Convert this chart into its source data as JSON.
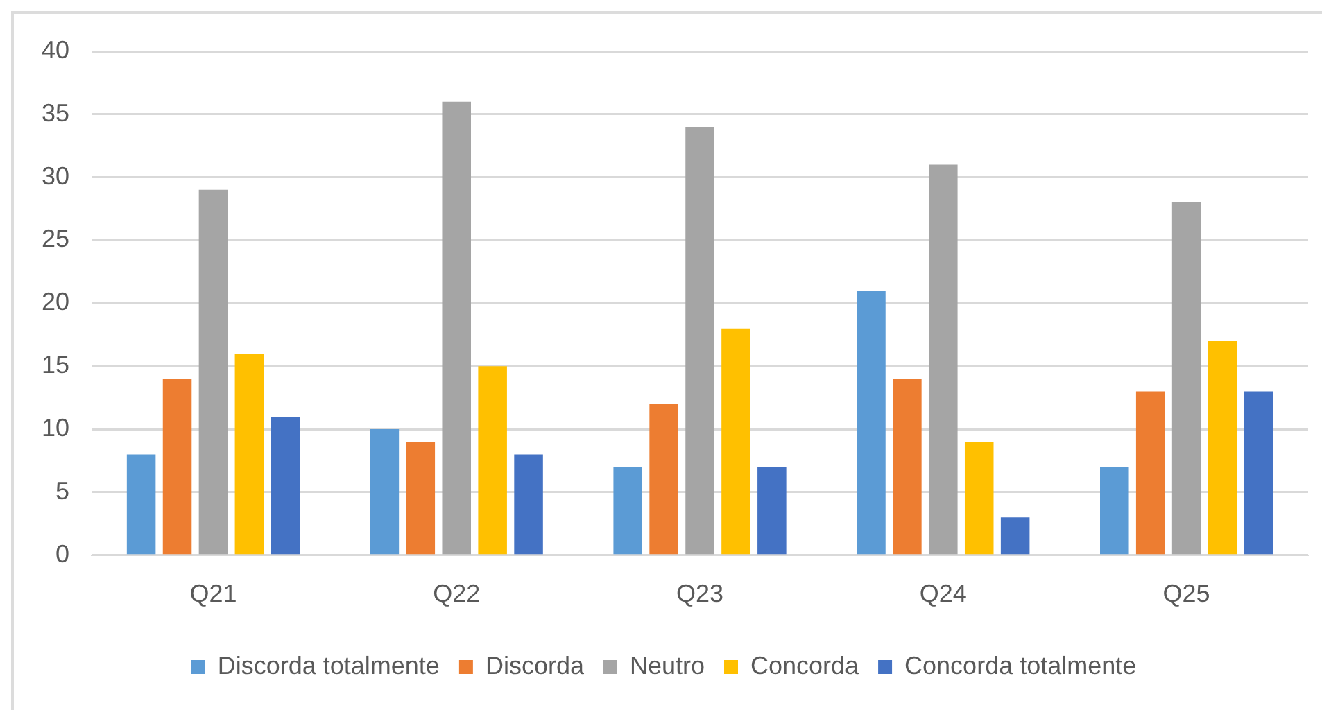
{
  "chart_data": {
    "type": "bar",
    "categories": [
      "Q21",
      "Q22",
      "Q23",
      "Q24",
      "Q25"
    ],
    "series": [
      {
        "name": "Discorda totalmente",
        "color": "#5b9bd5",
        "values": [
          8,
          10,
          7,
          21,
          7
        ]
      },
      {
        "name": "Discorda",
        "color": "#ed7d31",
        "values": [
          14,
          9,
          12,
          14,
          13
        ]
      },
      {
        "name": "Neutro",
        "color": "#a5a5a5",
        "values": [
          29,
          36,
          34,
          31,
          28
        ]
      },
      {
        "name": "Concorda",
        "color": "#ffc000",
        "values": [
          16,
          15,
          18,
          9,
          17
        ]
      },
      {
        "name": "Concorda totalmente",
        "color": "#4472c4",
        "values": [
          11,
          8,
          7,
          3,
          13
        ]
      }
    ],
    "ylim": [
      0,
      40
    ],
    "yticks": [
      0,
      5,
      10,
      15,
      20,
      25,
      30,
      35,
      40
    ],
    "grid": "y",
    "legend": "bottom"
  }
}
